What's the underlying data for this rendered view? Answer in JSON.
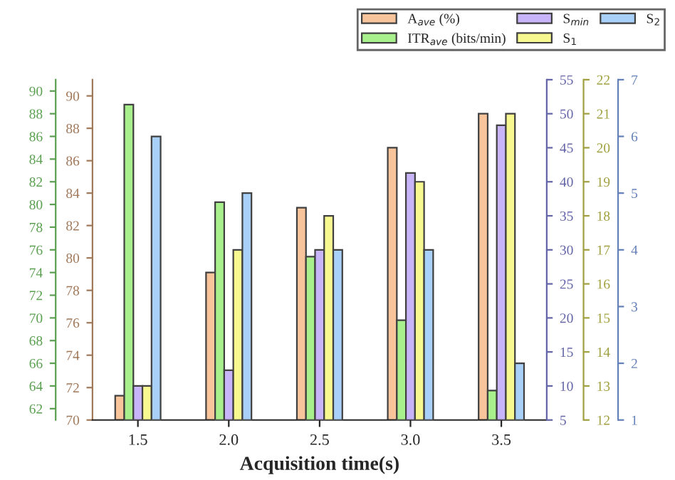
{
  "chart_data": [
    {
      "type": "bar",
      "xlabel": "Acquisition time(s)",
      "categories": [
        "1.5",
        "2.0",
        "2.5",
        "3.0",
        "3.5"
      ],
      "series": [
        {
          "name": "A$_{ave}$ (%)",
          "color": "#f8c49c",
          "values": [
            71.5,
            79.1,
            83.1,
            86.8,
            88.9
          ]
        },
        {
          "name": "ITR$_{ave}$ (bits/min)",
          "color": "#a8f08c",
          "axis": "y2",
          "values": [
            88.8,
            80.2,
            75.4,
            69.8,
            63.6
          ]
        }
      ],
      "ylim": [
        70,
        91
      ],
      "yticks": [
        70,
        72,
        74,
        76,
        78,
        80,
        82,
        84,
        86,
        88,
        90
      ],
      "y2lim": [
        61,
        91
      ],
      "y2ticks": [
        62,
        64,
        66,
        68,
        70,
        72,
        74,
        76,
        78,
        80,
        82,
        84,
        86,
        88,
        90
      ],
      "legend": "top right"
    },
    {
      "type": "bar",
      "categories": [
        "1.5",
        "2.0",
        "2.5",
        "3.0",
        "3.5"
      ],
      "series": [
        {
          "name": "S$_{min}$",
          "color": "#c8b4f8",
          "values": [
            10,
            12.3,
            30,
            41.3,
            48.3
          ]
        },
        {
          "name": "S$_{1}$",
          "color": "#f8f890",
          "axis": "y2",
          "values": [
            13,
            17,
            18,
            19,
            21
          ]
        },
        {
          "name": "S$_{2}$",
          "color": "#a8d0f8",
          "axis": "y3",
          "values": [
            6,
            5,
            4,
            4,
            2
          ]
        }
      ],
      "ylim": [
        5,
        55
      ],
      "yticks": [
        5,
        10,
        15,
        20,
        25,
        30,
        35,
        40,
        45,
        50,
        55
      ],
      "y2lim": [
        12,
        22
      ],
      "y2ticks": [
        12,
        13,
        14,
        15,
        16,
        17,
        18,
        19,
        20,
        21,
        22
      ],
      "y3lim": [
        1,
        7
      ],
      "y3ticks": [
        1,
        2,
        3,
        4,
        5,
        6,
        7
      ],
      "tick_labels": "y",
      "legend": "top right"
    }
  ]
}
